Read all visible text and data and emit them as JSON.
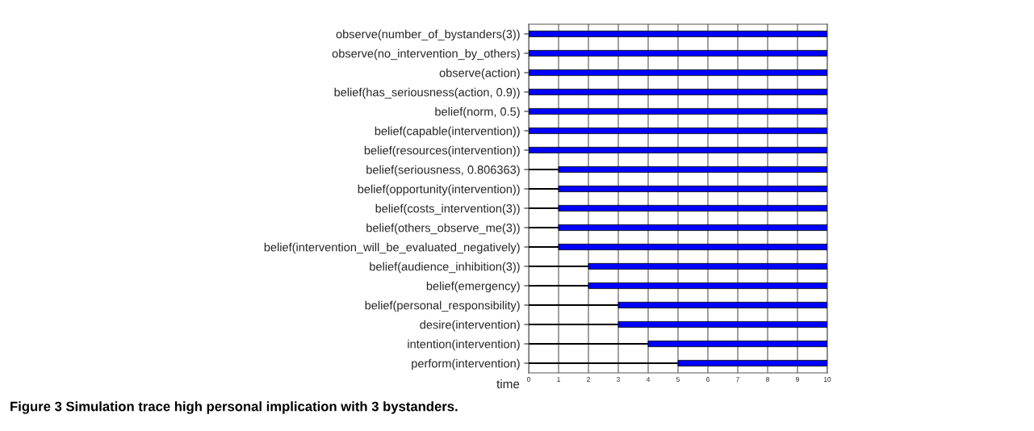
{
  "chart_data": {
    "type": "bar",
    "orientation": "horizontal",
    "stacked": true,
    "categories": [
      "observe(number_of_bystanders(3))",
      "observe(no_intervention_by_others)",
      "observe(action)",
      "belief(has_seriousness(action, 0.9))",
      "belief(norm, 0.5)",
      "belief(capable(intervention))",
      "belief(resources(intervention))",
      "belief(seriousness, 0.806363)",
      "belief(opportunity(intervention))",
      "belief(costs_intervention(3))",
      "belief(others_observe_me(3))",
      "belief(intervention_will_be_evaluated_negatively)",
      "belief(audience_inhibition(3))",
      "belief(emergency)",
      "belief(personal_responsibility)",
      "desire(intervention)",
      "intention(intervention)",
      "perform(intervention)"
    ],
    "series": [
      {
        "color": "#000000",
        "values": [
          0,
          0,
          0,
          0,
          0,
          0,
          0,
          1,
          1,
          1,
          1,
          1,
          2,
          2,
          3,
          3,
          4,
          5
        ]
      },
      {
        "color": "#0000ff",
        "values": [
          10,
          10,
          10,
          10,
          10,
          10,
          10,
          9,
          9,
          9,
          9,
          9,
          8,
          8,
          7,
          7,
          6,
          5
        ]
      }
    ],
    "xlabel": "time",
    "xlim": [
      0,
      10
    ],
    "xticks": [
      0,
      1,
      2,
      3,
      4,
      5,
      6,
      7,
      8,
      9,
      10
    ],
    "grid": "x",
    "annotations": [
      "Figure 3 Simulation trace high personal implication with 3 bystanders."
    ]
  }
}
